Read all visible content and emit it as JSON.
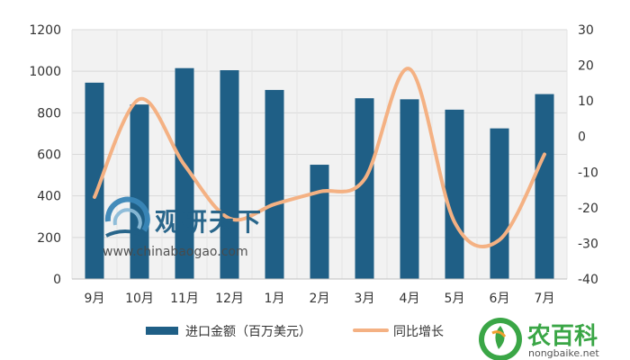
{
  "chart_data": {
    "type": "bar",
    "categories": [
      "9月",
      "10月",
      "11月",
      "12月",
      "1月",
      "2月",
      "3月",
      "4月",
      "5月",
      "6月",
      "7月"
    ],
    "series": [
      {
        "name": "进口金额（百万美元）",
        "type": "bar",
        "axis": "left",
        "color": "#1f5f86",
        "values": [
          945,
          840,
          1015,
          1005,
          910,
          550,
          870,
          865,
          815,
          725,
          890
        ]
      },
      {
        "name": "同比增长",
        "type": "line",
        "axis": "right",
        "color": "#f4b183",
        "values": [
          -17,
          10.5,
          -8,
          -23,
          -19,
          -15.5,
          -12,
          19,
          -24,
          -29,
          -5
        ]
      }
    ],
    "y_left": {
      "min": 0,
      "max": 1200,
      "ticks": [
        0,
        200,
        400,
        600,
        800,
        1000,
        1200
      ]
    },
    "y_right": {
      "min": -40,
      "max": 30,
      "ticks": [
        -40,
        -30,
        -20,
        -10,
        0,
        10,
        20,
        30
      ]
    },
    "grid": true,
    "legend_position": "bottom"
  },
  "watermark": {
    "brand_cn": "观研天下",
    "brand_en": "www.chinabaogao.com"
  },
  "corner_logo": {
    "name_cn": "农百科",
    "domain": "nongbaike.net"
  },
  "colors": {
    "bar": "#1f5f86",
    "line": "#f4b183",
    "grid": "#d9d9d9",
    "plot_bg": "#f2f2f2"
  }
}
